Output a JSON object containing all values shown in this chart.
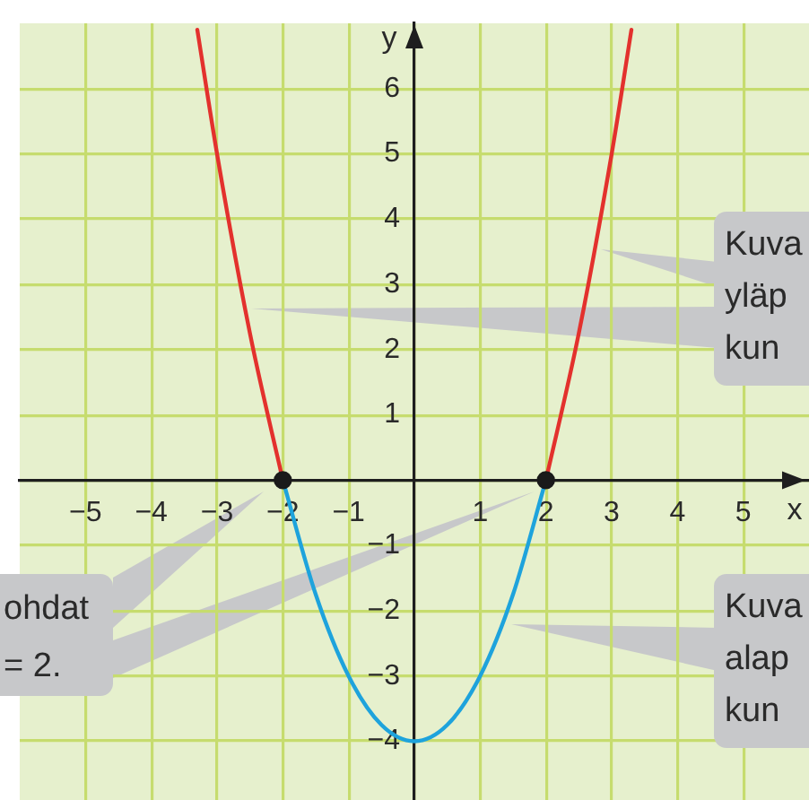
{
  "chart_data": {
    "type": "line",
    "xlabel": "x",
    "ylabel": "y",
    "xlim": [
      -6,
      6
    ],
    "ylim": [
      -4.9,
      7
    ],
    "xticks": [
      {
        "value": -5,
        "label": "−5"
      },
      {
        "value": -4,
        "label": "−4"
      },
      {
        "value": -3,
        "label": "−3"
      },
      {
        "value": -2,
        "label": "−2"
      },
      {
        "value": -1,
        "label": "−1"
      },
      {
        "value": 0,
        "label": null
      },
      1,
      2,
      3,
      4,
      5
    ],
    "yticks": [
      {
        "value": -4,
        "label": "−4"
      },
      {
        "value": -3,
        "label": "−3"
      },
      {
        "value": -2,
        "label": "−2"
      },
      {
        "value": -1,
        "label": "−1"
      },
      {
        "value": 0,
        "label": null
      },
      1,
      2,
      3,
      4,
      5,
      6
    ],
    "grid": true,
    "marker": "none",
    "series": [
      {
        "color": "#e3312d",
        "x": [
          -3.3,
          -3,
          -2.5,
          -2,
          0,
          2,
          2.5,
          3,
          3.3
        ],
        "values": [
          6.9,
          5,
          2.25,
          0,
          null,
          0,
          2.25,
          5,
          6.9
        ]
      },
      {
        "color": "#1ea3dc",
        "x": [
          -2,
          -1.5,
          -1,
          -0.5,
          0,
          0.5,
          1,
          1.5,
          2
        ],
        "values": [
          0,
          -1.75,
          -3,
          -3.75,
          -4,
          -3.75,
          -3,
          -1.75,
          0
        ]
      },
      {
        "type": "scatter",
        "color": "#1a1a1a",
        "marker": "circle",
        "x": [
          -2,
          2
        ],
        "values": [
          0,
          0
        ]
      }
    ],
    "annotations": [
      "Kuva\nyläp\nkun",
      "ohdat\n= 2.",
      "Kuva\nalap\nkun"
    ]
  }
}
